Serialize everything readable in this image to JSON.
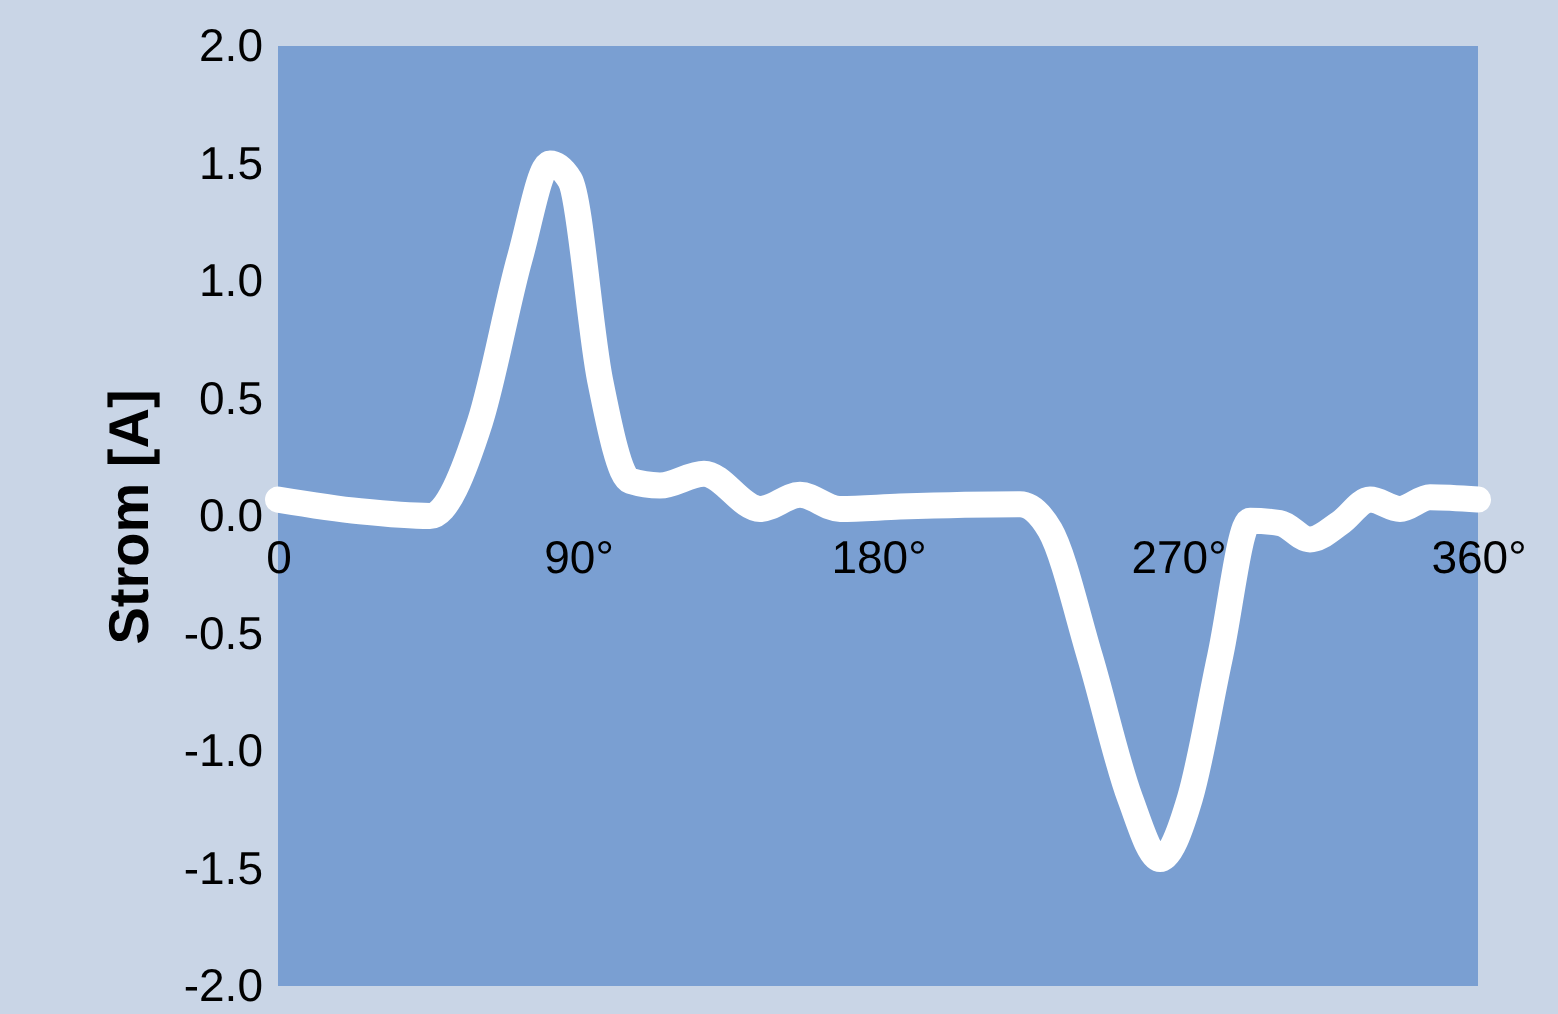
{
  "chart_data": {
    "type": "line",
    "ylabel": "Strom [A]",
    "x": [
      0,
      24.6,
      45.6,
      60.6,
      72.6,
      81.6,
      87.6,
      96.6,
      105.6,
      114.6,
      127.8,
      144.6,
      156.6,
      168.6,
      186.6,
      222.6,
      231.6,
      243.6,
      255.6,
      264.6,
      273.6,
      282.6,
      291.6,
      300.6,
      309.6,
      318.6,
      327.6,
      336.6,
      345.6,
      360
    ],
    "series": [
      {
        "color": "#ffffff",
        "values": [
          0.07,
          0.02,
          0.0,
          0.4,
          1.1,
          1.5,
          1.43,
          0.58,
          0.15,
          0.13,
          0.18,
          0.03,
          0.09,
          0.03,
          0.04,
          0.05,
          -0.06,
          -0.6,
          -1.2,
          -1.46,
          -1.2,
          -0.6,
          -0.02,
          -0.03,
          -0.1,
          -0.03,
          0.07,
          0.03,
          0.08,
          0.07
        ]
      }
    ],
    "xlim": [
      0,
      360
    ],
    "xticks": [
      0,
      {
        "value": 90,
        "label": "90°"
      },
      {
        "value": 180,
        "label": "180°"
      },
      {
        "value": 270,
        "label": "270°"
      },
      {
        "value": 360,
        "label": "360°"
      }
    ],
    "ylim": [
      -2,
      2
    ],
    "yticks": [
      {
        "value": -2,
        "label": "-2.0"
      },
      {
        "value": -1.5,
        "label": "-1.5"
      },
      {
        "value": -1,
        "label": "-1.0"
      },
      {
        "value": -0.5,
        "label": "-0.5"
      },
      {
        "value": 0,
        "label": "0.0"
      },
      {
        "value": 0.5,
        "label": "0.5"
      },
      {
        "value": 1,
        "label": "1.0"
      },
      {
        "value": 1.5,
        "label": "1.5"
      },
      {
        "value": 2,
        "label": "2.0"
      }
    ],
    "grid": false,
    "line_style": "solid"
  }
}
